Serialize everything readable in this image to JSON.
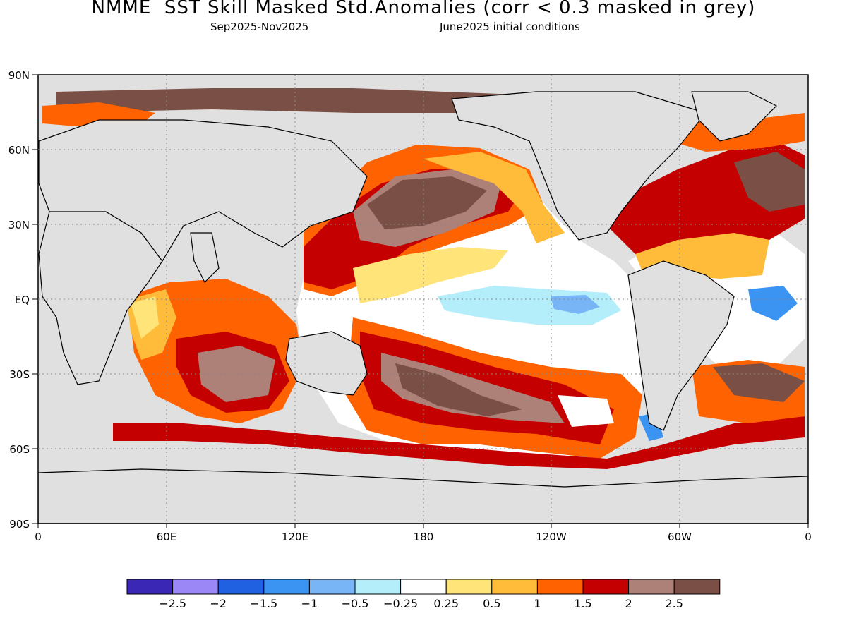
{
  "header": {
    "title": "NMME  SST Skill Masked Std.Anomalies (corr < 0.3 masked in grey)",
    "period": "Sep2025-Nov2025",
    "init": "June2025 initial conditions"
  },
  "map": {
    "mask_color": "#e0e0e0",
    "ocean_color": "#ffffff",
    "lat_labels": [
      "90N",
      "60N",
      "30N",
      "EQ",
      "30S",
      "60S",
      "90S"
    ],
    "lon_labels": [
      "0",
      "60E",
      "120E",
      "180",
      "120W",
      "60W",
      "0"
    ]
  },
  "colorbar": {
    "labels": [
      "-2.5",
      "-2",
      "-1.5",
      "-1",
      "-0.5",
      "-0.25",
      "0.25",
      "0.5",
      "1",
      "1.5",
      "2",
      "2.5"
    ],
    "colors": [
      "#3b27b5",
      "#9b87f5",
      "#1f61e0",
      "#3c94f2",
      "#78b5f7",
      "#b4eefa",
      "#ffffff",
      "#ffe47a",
      "#ffbb3a",
      "#ff6200",
      "#c40000",
      "#ad8078",
      "#7a4f45"
    ]
  }
}
